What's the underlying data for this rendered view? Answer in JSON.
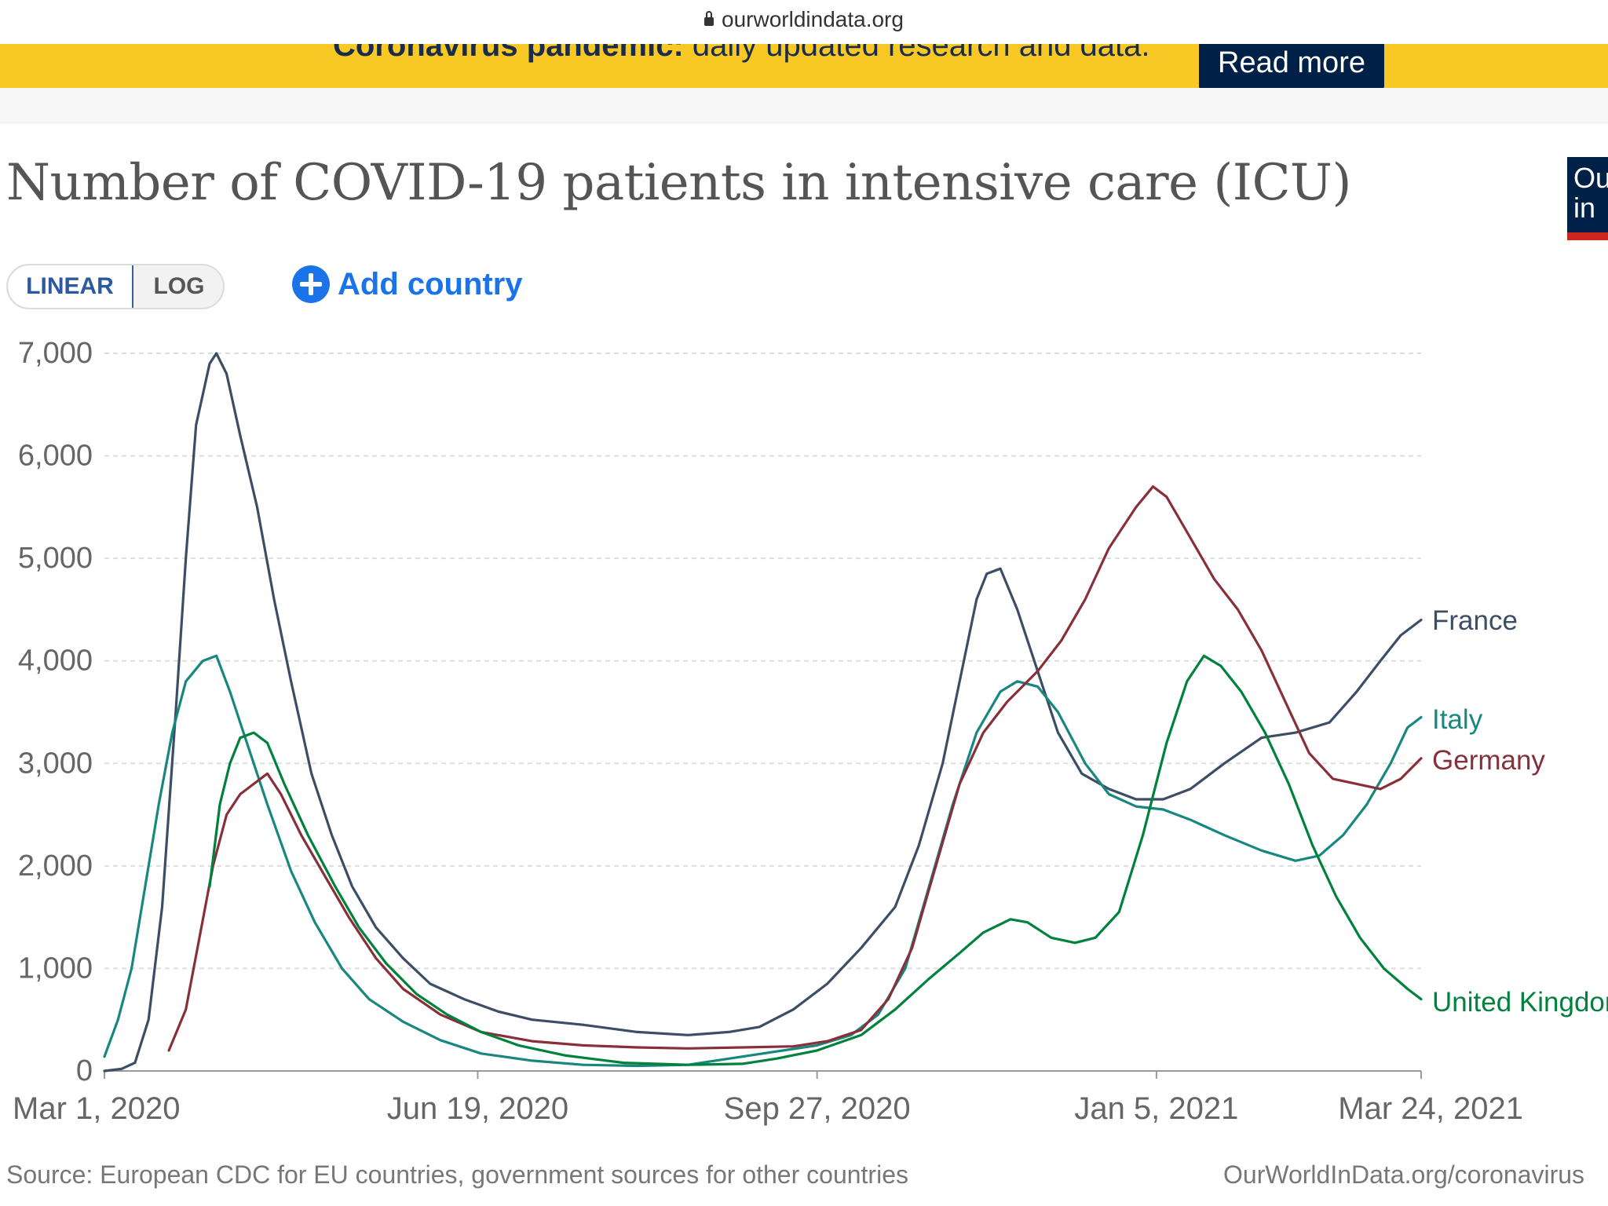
{
  "browser": {
    "url": "ourworldindata.org"
  },
  "banner": {
    "text_bold": "Coronavirus pandemic:",
    "text": " daily updated research and data.",
    "button": "Read more"
  },
  "logo": {
    "text_line1": "Ou",
    "text_line2": "in"
  },
  "controls": {
    "linear": "LINEAR",
    "log": "LOG",
    "add_country": "Add country"
  },
  "footer": {
    "source": "Source: European CDC for EU countries, government sources for other countries",
    "link": "OurWorldInData.org/coronavirus"
  },
  "chart_data": {
    "type": "line",
    "title": "Number of COVID-19 patients in intensive care (ICU)",
    "y_ticks": [
      0,
      1000,
      2000,
      3000,
      4000,
      5000,
      6000,
      7000
    ],
    "y_tick_labels": [
      "0",
      "1,000",
      "2,000",
      "3,000",
      "4,000",
      "5,000",
      "6,000",
      "7,000"
    ],
    "ylim": [
      0,
      7000
    ],
    "x_ticks": [
      "2020-03-01",
      "2020-06-19",
      "2020-09-27",
      "2021-01-05",
      "2021-03-24"
    ],
    "x_tick_labels": [
      "Mar 1, 2020",
      "Jun 19, 2020",
      "Sep 27, 2020",
      "Jan 5, 2021",
      "Mar 24, 2021"
    ],
    "xlim": [
      "2020-03-01",
      "2021-03-24"
    ],
    "grid": "horizontal dashed",
    "legend": "labels at line ends (right)",
    "series": [
      {
        "name": "France",
        "color": "#3c4e66",
        "points": [
          [
            "2020-03-01",
            0
          ],
          [
            "2020-03-06",
            20
          ],
          [
            "2020-03-10",
            80
          ],
          [
            "2020-03-14",
            500
          ],
          [
            "2020-03-18",
            1600
          ],
          [
            "2020-03-22",
            3500
          ],
          [
            "2020-03-25",
            5000
          ],
          [
            "2020-03-28",
            6300
          ],
          [
            "2020-04-01",
            6900
          ],
          [
            "2020-04-03",
            7000
          ],
          [
            "2020-04-06",
            6800
          ],
          [
            "2020-04-10",
            6200
          ],
          [
            "2020-04-15",
            5500
          ],
          [
            "2020-04-20",
            4600
          ],
          [
            "2020-04-25",
            3800
          ],
          [
            "2020-05-01",
            2900
          ],
          [
            "2020-05-07",
            2300
          ],
          [
            "2020-05-13",
            1800
          ],
          [
            "2020-05-20",
            1400
          ],
          [
            "2020-05-28",
            1100
          ],
          [
            "2020-06-05",
            850
          ],
          [
            "2020-06-15",
            700
          ],
          [
            "2020-06-25",
            580
          ],
          [
            "2020-07-05",
            500
          ],
          [
            "2020-07-20",
            450
          ],
          [
            "2020-08-05",
            380
          ],
          [
            "2020-08-20",
            350
          ],
          [
            "2020-09-01",
            380
          ],
          [
            "2020-09-10",
            430
          ],
          [
            "2020-09-20",
            600
          ],
          [
            "2020-09-30",
            850
          ],
          [
            "2020-10-10",
            1200
          ],
          [
            "2020-10-20",
            1600
          ],
          [
            "2020-10-27",
            2200
          ],
          [
            "2020-11-03",
            3000
          ],
          [
            "2020-11-08",
            3800
          ],
          [
            "2020-11-13",
            4600
          ],
          [
            "2020-11-16",
            4850
          ],
          [
            "2020-11-20",
            4900
          ],
          [
            "2020-11-25",
            4500
          ],
          [
            "2020-12-01",
            3900
          ],
          [
            "2020-12-07",
            3300
          ],
          [
            "2020-12-14",
            2900
          ],
          [
            "2020-12-22",
            2750
          ],
          [
            "2020-12-30",
            2650
          ],
          [
            "2021-01-07",
            2650
          ],
          [
            "2021-01-15",
            2750
          ],
          [
            "2021-01-25",
            3000
          ],
          [
            "2021-02-05",
            3250
          ],
          [
            "2021-02-15",
            3300
          ],
          [
            "2021-02-25",
            3400
          ],
          [
            "2021-03-05",
            3700
          ],
          [
            "2021-03-12",
            4000
          ],
          [
            "2021-03-18",
            4250
          ],
          [
            "2021-03-24",
            4400
          ]
        ]
      },
      {
        "name": "Italy",
        "color": "#18877f",
        "points": [
          [
            "2020-03-01",
            140
          ],
          [
            "2020-03-05",
            500
          ],
          [
            "2020-03-09",
            1000
          ],
          [
            "2020-03-13",
            1800
          ],
          [
            "2020-03-17",
            2600
          ],
          [
            "2020-03-21",
            3300
          ],
          [
            "2020-03-25",
            3800
          ],
          [
            "2020-03-30",
            4000
          ],
          [
            "2020-04-03",
            4050
          ],
          [
            "2020-04-07",
            3700
          ],
          [
            "2020-04-12",
            3200
          ],
          [
            "2020-04-18",
            2600
          ],
          [
            "2020-04-25",
            1950
          ],
          [
            "2020-05-02",
            1450
          ],
          [
            "2020-05-10",
            1000
          ],
          [
            "2020-05-18",
            700
          ],
          [
            "2020-05-28",
            480
          ],
          [
            "2020-06-08",
            300
          ],
          [
            "2020-06-20",
            170
          ],
          [
            "2020-07-05",
            100
          ],
          [
            "2020-07-20",
            60
          ],
          [
            "2020-08-05",
            50
          ],
          [
            "2020-08-20",
            60
          ],
          [
            "2020-09-01",
            120
          ],
          [
            "2020-09-15",
            190
          ],
          [
            "2020-09-27",
            250
          ],
          [
            "2020-10-07",
            350
          ],
          [
            "2020-10-15",
            550
          ],
          [
            "2020-10-23",
            1000
          ],
          [
            "2020-10-30",
            1800
          ],
          [
            "2020-11-06",
            2600
          ],
          [
            "2020-11-13",
            3300
          ],
          [
            "2020-11-20",
            3700
          ],
          [
            "2020-11-25",
            3800
          ],
          [
            "2020-12-01",
            3750
          ],
          [
            "2020-12-07",
            3500
          ],
          [
            "2020-12-15",
            3000
          ],
          [
            "2020-12-22",
            2700
          ],
          [
            "2020-12-30",
            2580
          ],
          [
            "2021-01-07",
            2550
          ],
          [
            "2021-01-15",
            2450
          ],
          [
            "2021-01-25",
            2300
          ],
          [
            "2021-02-05",
            2150
          ],
          [
            "2021-02-15",
            2050
          ],
          [
            "2021-02-22",
            2100
          ],
          [
            "2021-03-01",
            2300
          ],
          [
            "2021-03-08",
            2600
          ],
          [
            "2021-03-15",
            3000
          ],
          [
            "2021-03-20",
            3350
          ],
          [
            "2021-03-24",
            3450
          ]
        ]
      },
      {
        "name": "Germany",
        "color": "#883039",
        "points": [
          [
            "2020-03-20",
            200
          ],
          [
            "2020-03-25",
            600
          ],
          [
            "2020-03-29",
            1300
          ],
          [
            "2020-04-02",
            2000
          ],
          [
            "2020-04-06",
            2500
          ],
          [
            "2020-04-10",
            2700
          ],
          [
            "2020-04-14",
            2800
          ],
          [
            "2020-04-18",
            2900
          ],
          [
            "2020-04-22",
            2700
          ],
          [
            "2020-04-28",
            2300
          ],
          [
            "2020-05-05",
            1900
          ],
          [
            "2020-05-12",
            1500
          ],
          [
            "2020-05-20",
            1100
          ],
          [
            "2020-05-28",
            800
          ],
          [
            "2020-06-08",
            550
          ],
          [
            "2020-06-20",
            380
          ],
          [
            "2020-07-05",
            290
          ],
          [
            "2020-07-20",
            250
          ],
          [
            "2020-08-05",
            230
          ],
          [
            "2020-08-20",
            220
          ],
          [
            "2020-09-05",
            230
          ],
          [
            "2020-09-20",
            240
          ],
          [
            "2020-09-30",
            290
          ],
          [
            "2020-10-10",
            400
          ],
          [
            "2020-10-18",
            700
          ],
          [
            "2020-10-25",
            1200
          ],
          [
            "2020-11-01",
            2000
          ],
          [
            "2020-11-08",
            2800
          ],
          [
            "2020-11-15",
            3300
          ],
          [
            "2020-11-22",
            3600
          ],
          [
            "2020-12-01",
            3900
          ],
          [
            "2020-12-08",
            4200
          ],
          [
            "2020-12-15",
            4600
          ],
          [
            "2020-12-22",
            5100
          ],
          [
            "2020-12-30",
            5500
          ],
          [
            "2021-01-04",
            5700
          ],
          [
            "2021-01-08",
            5600
          ],
          [
            "2021-01-15",
            5200
          ],
          [
            "2021-01-22",
            4800
          ],
          [
            "2021-01-29",
            4500
          ],
          [
            "2021-02-05",
            4100
          ],
          [
            "2021-02-12",
            3600
          ],
          [
            "2021-02-19",
            3100
          ],
          [
            "2021-02-26",
            2850
          ],
          [
            "2021-03-05",
            2800
          ],
          [
            "2021-03-12",
            2750
          ],
          [
            "2021-03-18",
            2850
          ],
          [
            "2021-03-24",
            3050
          ]
        ]
      },
      {
        "name": "United Kingdom",
        "color": "#00813c",
        "points": [
          [
            "2020-04-01",
            1800
          ],
          [
            "2020-04-04",
            2600
          ],
          [
            "2020-04-07",
            3000
          ],
          [
            "2020-04-10",
            3250
          ],
          [
            "2020-04-14",
            3300
          ],
          [
            "2020-04-18",
            3200
          ],
          [
            "2020-04-23",
            2800
          ],
          [
            "2020-04-30",
            2300
          ],
          [
            "2020-05-08",
            1800
          ],
          [
            "2020-05-15",
            1400
          ],
          [
            "2020-05-23",
            1050
          ],
          [
            "2020-06-01",
            750
          ],
          [
            "2020-06-10",
            550
          ],
          [
            "2020-06-20",
            380
          ],
          [
            "2020-07-01",
            250
          ],
          [
            "2020-07-15",
            150
          ],
          [
            "2020-08-01",
            80
          ],
          [
            "2020-08-20",
            60
          ],
          [
            "2020-09-05",
            70
          ],
          [
            "2020-09-15",
            120
          ],
          [
            "2020-09-27",
            200
          ],
          [
            "2020-10-10",
            350
          ],
          [
            "2020-10-20",
            600
          ],
          [
            "2020-10-30",
            900
          ],
          [
            "2020-11-08",
            1150
          ],
          [
            "2020-11-15",
            1350
          ],
          [
            "2020-11-23",
            1480
          ],
          [
            "2020-11-28",
            1450
          ],
          [
            "2020-12-05",
            1300
          ],
          [
            "2020-12-12",
            1250
          ],
          [
            "2020-12-18",
            1300
          ],
          [
            "2020-12-25",
            1550
          ],
          [
            "2021-01-01",
            2300
          ],
          [
            "2021-01-08",
            3200
          ],
          [
            "2021-01-14",
            3800
          ],
          [
            "2021-01-19",
            4050
          ],
          [
            "2021-01-24",
            3950
          ],
          [
            "2021-01-30",
            3700
          ],
          [
            "2021-02-06",
            3300
          ],
          [
            "2021-02-13",
            2800
          ],
          [
            "2021-02-20",
            2200
          ],
          [
            "2021-02-27",
            1700
          ],
          [
            "2021-03-06",
            1300
          ],
          [
            "2021-03-13",
            1000
          ],
          [
            "2021-03-20",
            800
          ],
          [
            "2021-03-24",
            700
          ]
        ]
      }
    ]
  }
}
